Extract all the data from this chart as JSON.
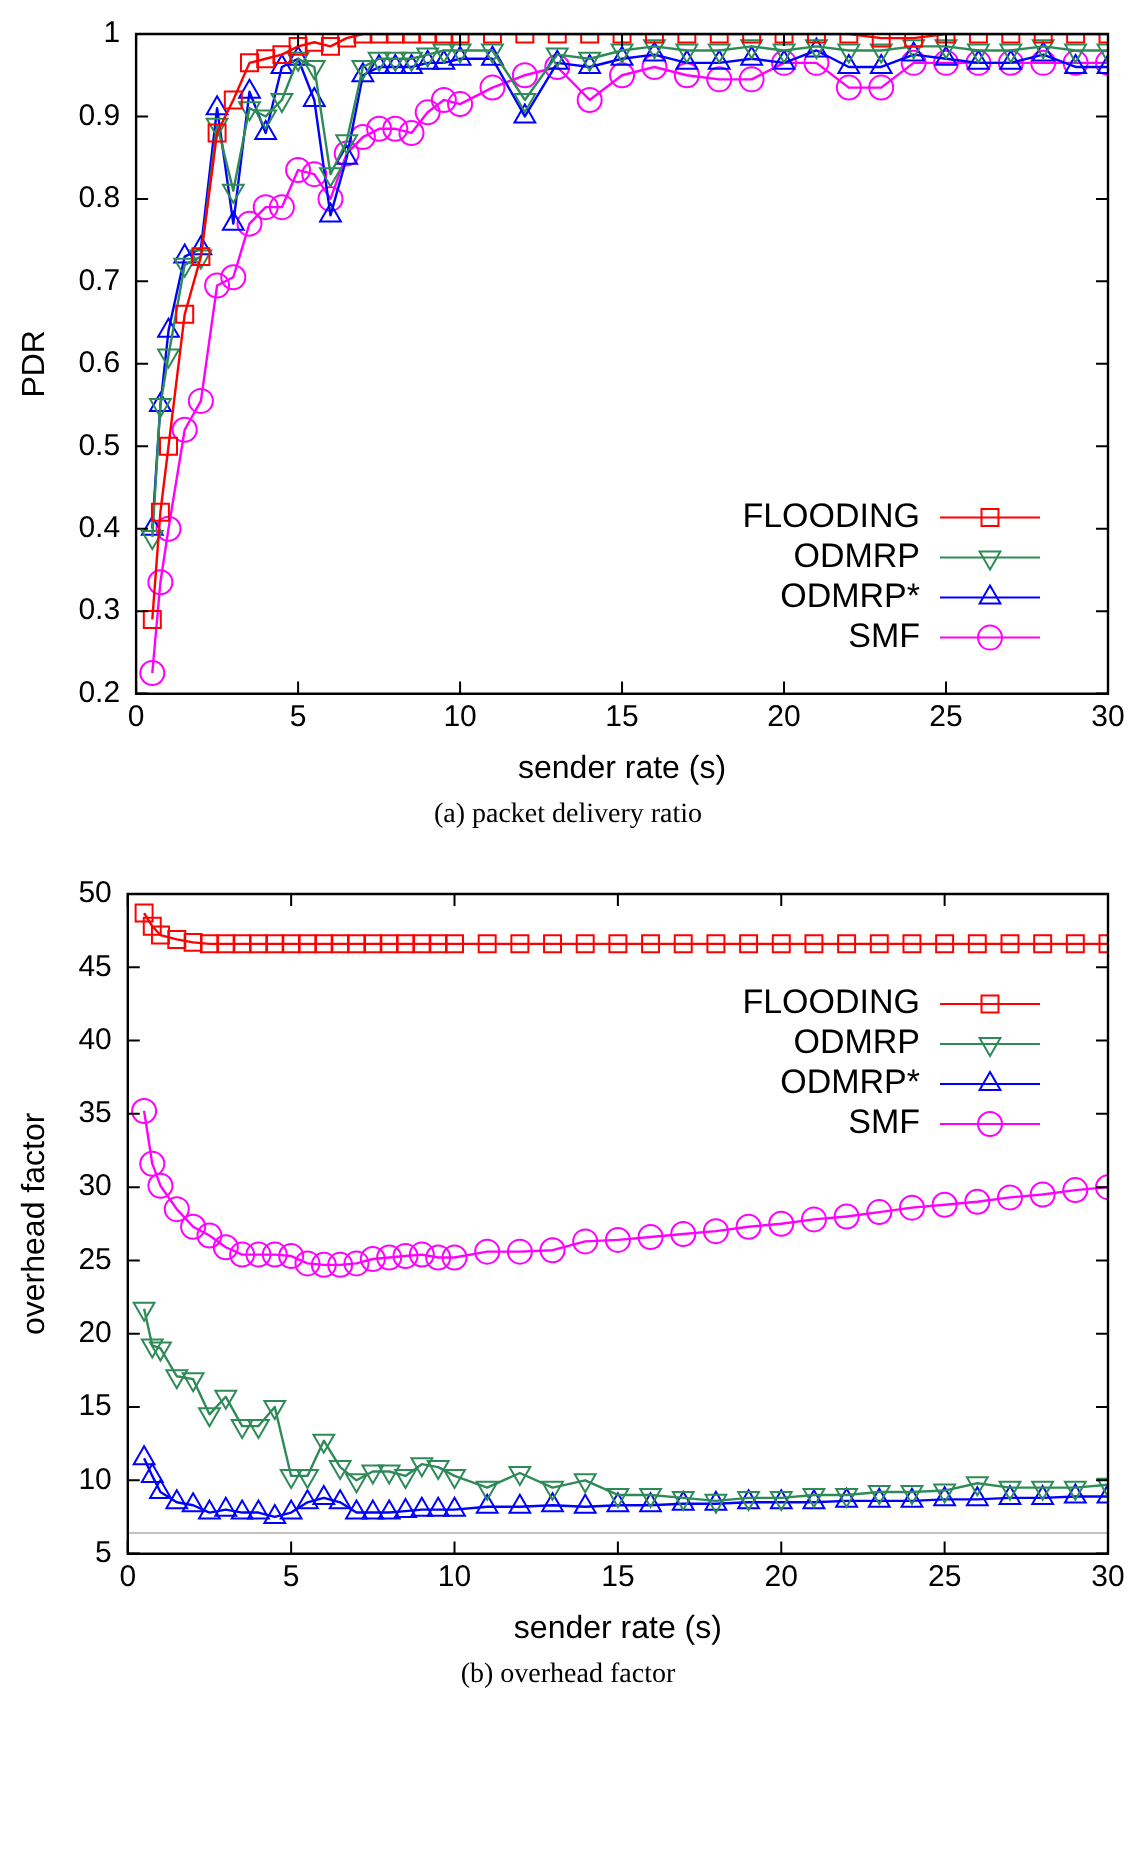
{
  "chart_data": [
    {
      "type": "line",
      "xlabel": "sender rate (s)",
      "ylabel": "PDR",
      "annotations": [
        "(a)  packet delivery ratio"
      ],
      "xlim": [
        0,
        30
      ],
      "xticks": [
        0,
        5,
        10,
        15,
        20,
        25,
        30
      ],
      "ylim": [
        0.2,
        1
      ],
      "yticks": [
        0.2,
        0.3,
        0.4,
        0.5,
        0.6,
        0.7,
        0.8,
        0.9,
        1
      ],
      "grid": false,
      "legend": "bottom right",
      "x": [
        0.5,
        0.75,
        1,
        1.5,
        2,
        2.5,
        3,
        3.5,
        4,
        4.5,
        5,
        5.5,
        6,
        6.5,
        7,
        7.5,
        8,
        8.5,
        9,
        9.5,
        10,
        11,
        12,
        13,
        14,
        15,
        16,
        17,
        18,
        19,
        20,
        21,
        22,
        23,
        24,
        25,
        26,
        27,
        28,
        29,
        30
      ],
      "series": [
        {
          "name": "FLOODING",
          "color": "#ff0000",
          "marker": "square",
          "values": [
            0.29,
            0.42,
            0.5,
            0.66,
            0.73,
            0.88,
            0.92,
            0.965,
            0.97,
            0.975,
            0.985,
            0.99,
            0.985,
            0.995,
            1,
            1,
            1,
            1,
            1,
            1,
            1,
            1,
            1,
            1,
            1,
            1,
            1,
            1,
            1,
            1,
            1,
            1,
            1,
            0.995,
            0.995,
            1,
            1,
            1,
            1,
            1,
            1
          ]
        },
        {
          "name": "ODMRP",
          "color": "#2e8b57",
          "marker": "triangle-down",
          "values": [
            0.39,
            0.55,
            0.61,
            0.72,
            0.73,
            0.89,
            0.81,
            0.91,
            0.9,
            0.92,
            0.97,
            0.96,
            0.83,
            0.87,
            0.96,
            0.97,
            0.97,
            0.97,
            0.975,
            0.98,
            0.98,
            0.98,
            0.92,
            0.975,
            0.97,
            0.98,
            0.985,
            0.98,
            0.98,
            0.985,
            0.98,
            0.985,
            0.98,
            0.98,
            0.985,
            0.985,
            0.98,
            0.98,
            0.985,
            0.98,
            0.98
          ]
        },
        {
          "name": "ODMRP*",
          "color": "#0000ff",
          "marker": "triangle",
          "values": [
            0.4,
            0.55,
            0.64,
            0.73,
            0.74,
            0.91,
            0.77,
            0.93,
            0.88,
            0.96,
            0.97,
            0.92,
            0.78,
            0.85,
            0.95,
            0.96,
            0.96,
            0.96,
            0.965,
            0.965,
            0.97,
            0.97,
            0.9,
            0.965,
            0.96,
            0.97,
            0.975,
            0.965,
            0.965,
            0.97,
            0.965,
            0.98,
            0.96,
            0.96,
            0.975,
            0.97,
            0.965,
            0.965,
            0.975,
            0.96,
            0.96
          ]
        },
        {
          "name": "SMF",
          "color": "#ff00ff",
          "marker": "circle",
          "values": [
            0.225,
            0.335,
            0.4,
            0.52,
            0.555,
            0.695,
            0.705,
            0.77,
            0.79,
            0.79,
            0.835,
            0.83,
            0.8,
            0.855,
            0.875,
            0.885,
            0.885,
            0.88,
            0.905,
            0.92,
            0.915,
            0.935,
            0.95,
            0.96,
            0.92,
            0.95,
            0.96,
            0.95,
            0.945,
            0.945,
            0.965,
            0.965,
            0.935,
            0.935,
            0.965,
            0.965,
            0.965,
            0.965,
            0.965,
            0.965,
            0.965
          ]
        }
      ]
    },
    {
      "type": "line",
      "xlabel": "sender rate (s)",
      "ylabel": "overhead factor",
      "annotations": [
        "(b)  overhead factor"
      ],
      "xlim": [
        0,
        30
      ],
      "xticks": [
        0,
        5,
        10,
        15,
        20,
        25,
        30
      ],
      "ylim": [
        5,
        50
      ],
      "yticks": [
        5,
        10,
        15,
        20,
        25,
        30,
        35,
        40,
        45,
        50
      ],
      "grid": false,
      "legend": "top right",
      "ref_lines": [
        {
          "axis": "y",
          "value": 6.4,
          "color": "#c0c0c0"
        }
      ],
      "x": [
        0.5,
        0.75,
        1,
        1.5,
        2,
        2.5,
        3,
        3.5,
        4,
        4.5,
        5,
        5.5,
        6,
        6.5,
        7,
        7.5,
        8,
        8.5,
        9,
        9.5,
        10,
        11,
        12,
        13,
        14,
        15,
        16,
        17,
        18,
        19,
        20,
        21,
        22,
        23,
        24,
        25,
        26,
        27,
        28,
        29,
        30
      ],
      "series": [
        {
          "name": "FLOODING",
          "color": "#ff0000",
          "marker": "square",
          "values": [
            48.7,
            47.8,
            47.2,
            46.9,
            46.7,
            46.6,
            46.6,
            46.6,
            46.6,
            46.6,
            46.6,
            46.6,
            46.6,
            46.6,
            46.6,
            46.6,
            46.6,
            46.6,
            46.6,
            46.6,
            46.6,
            46.6,
            46.6,
            46.6,
            46.6,
            46.6,
            46.6,
            46.6,
            46.6,
            46.6,
            46.6,
            46.6,
            46.6,
            46.6,
            46.6,
            46.6,
            46.6,
            46.6,
            46.6,
            46.6,
            46.6
          ]
        },
        {
          "name": "ODMRP",
          "color": "#2e8b57",
          "marker": "triangle-down",
          "values": [
            21.7,
            19.2,
            19,
            17.1,
            16.9,
            14.5,
            15.7,
            13.7,
            13.7,
            15,
            10.3,
            10.3,
            12.7,
            10.9,
            10,
            10.6,
            10.6,
            10.3,
            11.1,
            10.9,
            10.3,
            9.5,
            10.5,
            9.5,
            10,
            9,
            9,
            8.8,
            8.6,
            8.8,
            8.8,
            9,
            9,
            9.2,
            9.2,
            9.3,
            9.8,
            9.5,
            9.5,
            9.5,
            9.7
          ]
        },
        {
          "name": "ODMRP*",
          "color": "#0000ff",
          "marker": "triangle",
          "values": [
            11.5,
            10.3,
            9.2,
            8.5,
            8.3,
            7.8,
            8,
            7.8,
            7.8,
            7.5,
            7.8,
            8.5,
            8.8,
            8.5,
            7.8,
            7.8,
            7.8,
            7.9,
            8,
            8,
            8,
            8.2,
            8.2,
            8.3,
            8.2,
            8.3,
            8.3,
            8.4,
            8.4,
            8.5,
            8.5,
            8.5,
            8.6,
            8.6,
            8.6,
            8.7,
            8.7,
            8.8,
            8.8,
            8.9,
            8.9
          ]
        },
        {
          "name": "SMF",
          "color": "#ff00ff",
          "marker": "circle",
          "values": [
            35.2,
            31.6,
            30.1,
            28.5,
            27.3,
            26.7,
            25.9,
            25.4,
            25.4,
            25.4,
            25.3,
            24.8,
            24.7,
            24.7,
            24.8,
            25.1,
            25.2,
            25.3,
            25.4,
            25.2,
            25.2,
            25.6,
            25.6,
            25.7,
            26.3,
            26.4,
            26.6,
            26.8,
            27,
            27.3,
            27.5,
            27.8,
            28,
            28.3,
            28.6,
            28.8,
            29,
            29.3,
            29.5,
            29.8,
            30
          ]
        }
      ]
    }
  ]
}
